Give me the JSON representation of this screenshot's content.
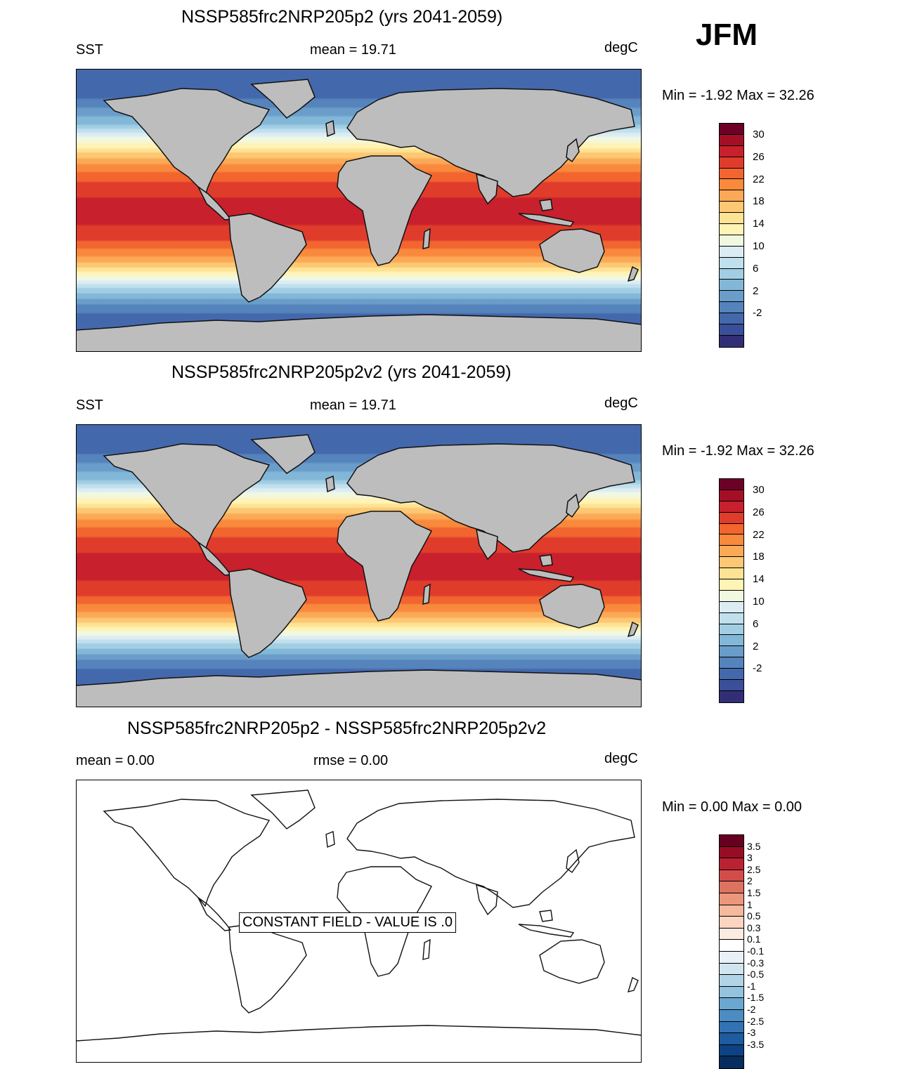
{
  "season": "JFM",
  "panels": [
    {
      "title": "NSSP585frc2NRP205p2 (yrs 2041-2059)",
      "left": "SST",
      "center": "mean =  19.71",
      "right": "degC",
      "minmax": "Min =  -1.92 Max =  32.26"
    },
    {
      "title": "NSSP585frc2NRP205p2v2 (yrs 2041-2059)",
      "left": "SST",
      "center": "mean =  19.71",
      "right": "degC",
      "minmax": "Min =  -1.92 Max =  32.26"
    },
    {
      "title": "NSSP585frc2NRP205p2 - NSSP585frc2NRP205p2v2",
      "left": "mean =   0.00",
      "center": "rmse =   0.00",
      "right": "degC",
      "minmax": "Min =   0.00 Max =   0.00",
      "note": "CONSTANT FIELD - VALUE IS .0"
    }
  ],
  "colorbar_abs": {
    "colors": [
      "#6d0026",
      "#a50f26",
      "#c8202c",
      "#e03c2c",
      "#f2652f",
      "#f9893d",
      "#fba956",
      "#fdc873",
      "#fee394",
      "#fff3b5",
      "#f1f8e2",
      "#dcecf3",
      "#c0e0ee",
      "#a2cee3",
      "#83b7d7",
      "#6a9dc9",
      "#5583bc",
      "#4468ac",
      "#3b4e9a",
      "#322e76"
    ],
    "ticks": [
      "30",
      "26",
      "22",
      "18",
      "14",
      "10",
      "6",
      "2",
      "-2"
    ]
  },
  "colorbar_diff": {
    "colors": [
      "#670020",
      "#980c24",
      "#ba2233",
      "#d24d4a",
      "#de7260",
      "#ec967b",
      "#f5b99e",
      "#fbd5c0",
      "#fcebe0",
      "#ffffff",
      "#e7f1f7",
      "#d0e5f0",
      "#b3d4e7",
      "#93c3df",
      "#6ba7d0",
      "#4b8dc3",
      "#3373b3",
      "#1f5b9f",
      "#0f4284",
      "#062d5e"
    ],
    "ticks": [
      "3.5",
      "3",
      "2.5",
      "2",
      "1.5",
      "1",
      "0.5",
      "0.3",
      "0.1",
      "-0.1",
      "-0.3",
      "-0.5",
      "-1",
      "-1.5",
      "-2",
      "-2.5",
      "-3",
      "-3.5"
    ]
  },
  "sst_field": [
    {
      "lat": 90,
      "temp": -1.8
    },
    {
      "lat": 75,
      "temp": -1.5
    },
    {
      "lat": 66,
      "temp": 2
    },
    {
      "lat": 55,
      "temp": 6
    },
    {
      "lat": 45,
      "temp": 13
    },
    {
      "lat": 35,
      "temp": 19
    },
    {
      "lat": 25,
      "temp": 24
    },
    {
      "lat": 15,
      "temp": 27
    },
    {
      "lat": 5,
      "temp": 28.5
    },
    {
      "lat": -5,
      "temp": 28.5
    },
    {
      "lat": -15,
      "temp": 27.5
    },
    {
      "lat": -25,
      "temp": 24
    },
    {
      "lat": -35,
      "temp": 19
    },
    {
      "lat": -42,
      "temp": 14
    },
    {
      "lat": -48,
      "temp": 9
    },
    {
      "lat": -55,
      "temp": 4.5
    },
    {
      "lat": -62,
      "temp": 1
    },
    {
      "lat": -70,
      "temp": -1.5
    },
    {
      "lat": -90,
      "temp": -1.8
    }
  ]
}
